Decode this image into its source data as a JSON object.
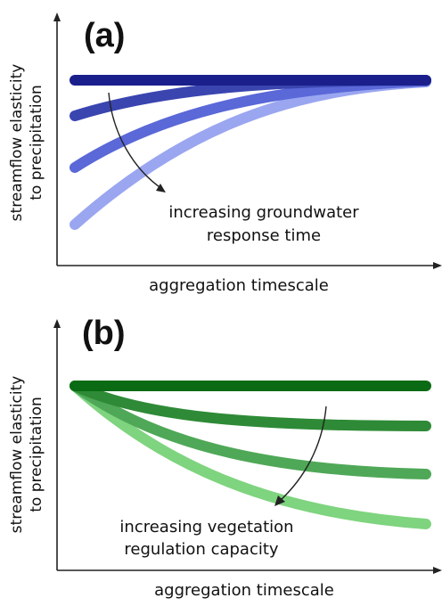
{
  "panels": [
    {
      "label": "(a)",
      "ylabel_line1": "streamflow elasticity",
      "ylabel_line2": "to precipitation",
      "xlabel": "aggregation timescale",
      "annotation_line1": "increasing groundwater",
      "annotation_line2": "response time",
      "colors": [
        "#1a1f8c",
        "#3a45b0",
        "#5a68d8",
        "#9aa6f0"
      ]
    },
    {
      "label": "(b)",
      "ylabel_line1": "streamflow elasticity",
      "ylabel_line2": "to precipitation",
      "xlabel": "aggregation timescale",
      "annotation_line1": "increasing vegetation",
      "annotation_line2": "regulation capacity",
      "colors": [
        "#0b6a14",
        "#2e8a36",
        "#4fa857",
        "#7fd47f"
      ]
    }
  ]
}
